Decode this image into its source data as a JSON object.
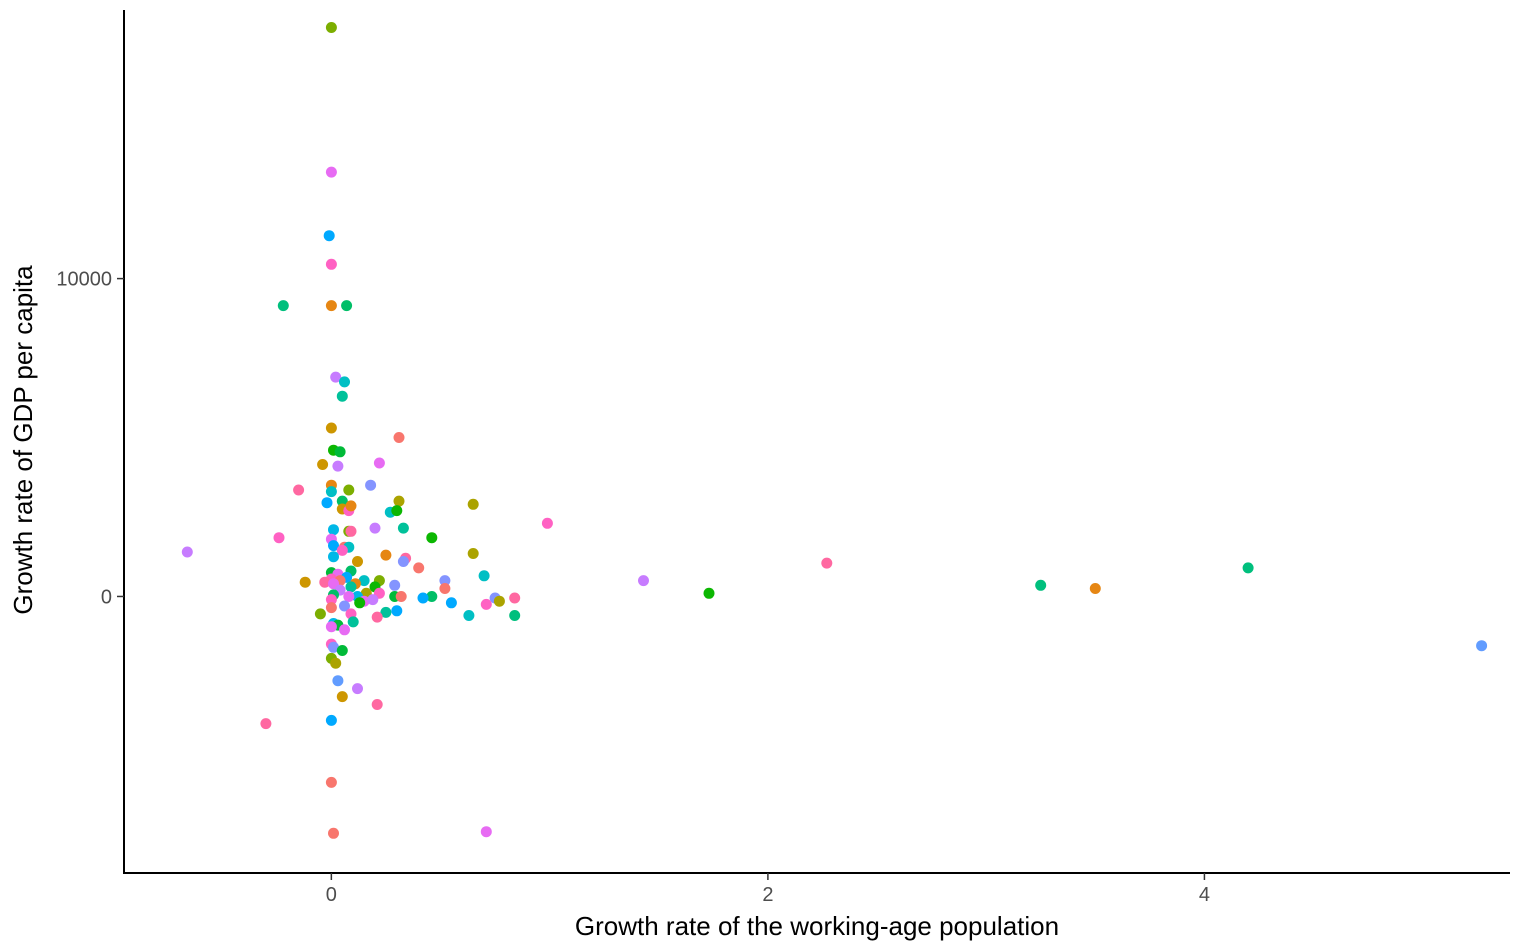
{
  "chart_data": {
    "type": "scatter",
    "title": "",
    "xlabel": "Growth rate of the working-age population",
    "ylabel": "Growth rate of GDP per capita",
    "xlim": [
      -0.95,
      5.4
    ],
    "ylim": [
      -8700,
      18450
    ],
    "x_ticks": [
      0,
      2,
      4
    ],
    "y_ticks": [
      0,
      10000
    ],
    "x_tick_labels": [
      "0",
      "2",
      "4"
    ],
    "y_tick_labels": [
      "0",
      "10000"
    ],
    "grid": false,
    "legend": "none",
    "points": [
      {
        "x": 0.0,
        "y": 17900,
        "color": "#7CAE00"
      },
      {
        "x": 0.0,
        "y": 13350,
        "color": "#E76BF3"
      },
      {
        "x": -0.01,
        "y": 11350,
        "color": "#00A9FF"
      },
      {
        "x": 0.0,
        "y": 10450,
        "color": "#FF61C3"
      },
      {
        "x": -0.22,
        "y": 9150,
        "color": "#00BF7D"
      },
      {
        "x": 0.0,
        "y": 9150,
        "color": "#E68613"
      },
      {
        "x": 0.07,
        "y": 9150,
        "color": "#00BE67"
      },
      {
        "x": 0.02,
        "y": 6900,
        "color": "#C77CFF"
      },
      {
        "x": 0.06,
        "y": 6750,
        "color": "#00BFC4"
      },
      {
        "x": 0.05,
        "y": 6300,
        "color": "#00C19A"
      },
      {
        "x": 0.0,
        "y": 5300,
        "color": "#CD9600"
      },
      {
        "x": 0.31,
        "y": 5000,
        "color": "#F8766D"
      },
      {
        "x": 0.01,
        "y": 4600,
        "color": "#0CB702"
      },
      {
        "x": 0.04,
        "y": 4550,
        "color": "#00BA38"
      },
      {
        "x": -0.04,
        "y": 4150,
        "color": "#CD9600"
      },
      {
        "x": 0.22,
        "y": 4200,
        "color": "#E76BF3"
      },
      {
        "x": 0.03,
        "y": 4100,
        "color": "#C77CFF"
      },
      {
        "x": 0.0,
        "y": 3500,
        "color": "#E68613"
      },
      {
        "x": -0.15,
        "y": 3350,
        "color": "#FF68A1"
      },
      {
        "x": 0.08,
        "y": 3350,
        "color": "#7CAE00"
      },
      {
        "x": 0.0,
        "y": 3300,
        "color": "#00BFC4"
      },
      {
        "x": 0.18,
        "y": 3500,
        "color": "#8494FF"
      },
      {
        "x": -0.02,
        "y": 2950,
        "color": "#00A9FF"
      },
      {
        "x": 0.05,
        "y": 3000,
        "color": "#00BE67"
      },
      {
        "x": 0.31,
        "y": 3000,
        "color": "#ABA300"
      },
      {
        "x": 0.65,
        "y": 2900,
        "color": "#ABA300"
      },
      {
        "x": 0.05,
        "y": 2750,
        "color": "#CD9600"
      },
      {
        "x": 0.08,
        "y": 2700,
        "color": "#FF61C3"
      },
      {
        "x": 0.09,
        "y": 2850,
        "color": "#E68613"
      },
      {
        "x": 0.27,
        "y": 2650,
        "color": "#00BFC4"
      },
      {
        "x": 0.3,
        "y": 2700,
        "color": "#0CB702"
      },
      {
        "x": 0.99,
        "y": 2300,
        "color": "#FF61C3"
      },
      {
        "x": 0.01,
        "y": 2100,
        "color": "#00B8E7"
      },
      {
        "x": 0.08,
        "y": 2050,
        "color": "#7CAE00"
      },
      {
        "x": 0.09,
        "y": 2050,
        "color": "#FF68A1"
      },
      {
        "x": 0.2,
        "y": 2150,
        "color": "#C77CFF"
      },
      {
        "x": 0.33,
        "y": 2150,
        "color": "#00C19A"
      },
      {
        "x": -0.24,
        "y": 1850,
        "color": "#FF61C3"
      },
      {
        "x": 0.46,
        "y": 1850,
        "color": "#0CB702"
      },
      {
        "x": 0.0,
        "y": 1800,
        "color": "#E76BF3"
      },
      {
        "x": 0.01,
        "y": 1600,
        "color": "#00A9FF"
      },
      {
        "x": 0.06,
        "y": 1550,
        "color": "#F8766D"
      },
      {
        "x": 0.08,
        "y": 1550,
        "color": "#00BFC4"
      },
      {
        "x": 0.05,
        "y": 1450,
        "color": "#FF61C3"
      },
      {
        "x": -0.66,
        "y": 1400,
        "color": "#C77CFF"
      },
      {
        "x": 0.65,
        "y": 1350,
        "color": "#ABA300"
      },
      {
        "x": 0.25,
        "y": 1300,
        "color": "#E68613"
      },
      {
        "x": 0.01,
        "y": 1250,
        "color": "#00B8E7"
      },
      {
        "x": 0.34,
        "y": 1200,
        "color": "#FF68A1"
      },
      {
        "x": 0.33,
        "y": 1100,
        "color": "#8494FF"
      },
      {
        "x": 0.12,
        "y": 1100,
        "color": "#CD9600"
      },
      {
        "x": 2.27,
        "y": 1050,
        "color": "#FF68A1"
      },
      {
        "x": 0.4,
        "y": 900,
        "color": "#F8766D"
      },
      {
        "x": 4.2,
        "y": 900,
        "color": "#00BF7D"
      },
      {
        "x": 0.09,
        "y": 800,
        "color": "#00BE67"
      },
      {
        "x": 0.0,
        "y": 750,
        "color": "#00BA38"
      },
      {
        "x": 0.03,
        "y": 700,
        "color": "#E76BF3"
      },
      {
        "x": 0.7,
        "y": 650,
        "color": "#00BFC4"
      },
      {
        "x": 0.07,
        "y": 600,
        "color": "#00A9FF"
      },
      {
        "x": 0.0,
        "y": 550,
        "color": "#FF61C3"
      },
      {
        "x": 0.22,
        "y": 500,
        "color": "#7CAE00"
      },
      {
        "x": 0.52,
        "y": 500,
        "color": "#8494FF"
      },
      {
        "x": 0.15,
        "y": 500,
        "color": "#00BFC4"
      },
      {
        "x": 0.04,
        "y": 500,
        "color": "#F8766D"
      },
      {
        "x": 1.43,
        "y": 500,
        "color": "#C77CFF"
      },
      {
        "x": -0.12,
        "y": 450,
        "color": "#CD9600"
      },
      {
        "x": -0.03,
        "y": 450,
        "color": "#FF68A1"
      },
      {
        "x": 0.01,
        "y": 400,
        "color": "#E76BF3"
      },
      {
        "x": 0.11,
        "y": 400,
        "color": "#E68613"
      },
      {
        "x": 0.29,
        "y": 350,
        "color": "#8494FF"
      },
      {
        "x": 3.25,
        "y": 350,
        "color": "#00BF7D"
      },
      {
        "x": 0.09,
        "y": 300,
        "color": "#00C19A"
      },
      {
        "x": 0.2,
        "y": 300,
        "color": "#0CB702"
      },
      {
        "x": 3.5,
        "y": 250,
        "color": "#E68613"
      },
      {
        "x": 0.52,
        "y": 250,
        "color": "#F8766D"
      },
      {
        "x": 0.04,
        "y": 200,
        "color": "#C77CFF"
      },
      {
        "x": 0.16,
        "y": 100,
        "color": "#ABA300"
      },
      {
        "x": 0.22,
        "y": 100,
        "color": "#FF61C3"
      },
      {
        "x": 1.73,
        "y": 100,
        "color": "#0CB702"
      },
      {
        "x": 0.01,
        "y": 50,
        "color": "#00BE67"
      },
      {
        "x": 0.12,
        "y": 0,
        "color": "#00B8E7"
      },
      {
        "x": 0.29,
        "y": 0,
        "color": "#00BA38"
      },
      {
        "x": 0.32,
        "y": 0,
        "color": "#F8766D"
      },
      {
        "x": 0.46,
        "y": 0,
        "color": "#00BE67"
      },
      {
        "x": 0.08,
        "y": 0,
        "color": "#E76BF3"
      },
      {
        "x": 0.42,
        "y": -50,
        "color": "#00A9FF"
      },
      {
        "x": 0.75,
        "y": -50,
        "color": "#8494FF"
      },
      {
        "x": 0.84,
        "y": -50,
        "color": "#FF68A1"
      },
      {
        "x": 0.0,
        "y": -100,
        "color": "#FF61C3"
      },
      {
        "x": 0.15,
        "y": -150,
        "color": "#E76BF3"
      },
      {
        "x": 0.19,
        "y": -100,
        "color": "#C77CFF"
      },
      {
        "x": 0.77,
        "y": -150,
        "color": "#ABA300"
      },
      {
        "x": 0.55,
        "y": -200,
        "color": "#00A9FF"
      },
      {
        "x": 0.71,
        "y": -250,
        "color": "#FF61C3"
      },
      {
        "x": 0.13,
        "y": -200,
        "color": "#0CB702"
      },
      {
        "x": 0.0,
        "y": -350,
        "color": "#F8766D"
      },
      {
        "x": 0.06,
        "y": -300,
        "color": "#8494FF"
      },
      {
        "x": 0.3,
        "y": -450,
        "color": "#00A9FF"
      },
      {
        "x": 0.25,
        "y": -500,
        "color": "#00C19A"
      },
      {
        "x": 0.09,
        "y": -550,
        "color": "#FF61C3"
      },
      {
        "x": -0.05,
        "y": -550,
        "color": "#7CAE00"
      },
      {
        "x": 0.63,
        "y": -600,
        "color": "#00BFC4"
      },
      {
        "x": 0.84,
        "y": -600,
        "color": "#00BF7D"
      },
      {
        "x": 0.21,
        "y": -650,
        "color": "#FF68A1"
      },
      {
        "x": 0.1,
        "y": -800,
        "color": "#00C19A"
      },
      {
        "x": 0.01,
        "y": -850,
        "color": "#00B8E7"
      },
      {
        "x": 0.03,
        "y": -900,
        "color": "#00BA38"
      },
      {
        "x": 0.0,
        "y": -950,
        "color": "#E76BF3"
      },
      {
        "x": 0.06,
        "y": -1050,
        "color": "#E76BF3"
      },
      {
        "x": 0.0,
        "y": -1500,
        "color": "#FF61C3"
      },
      {
        "x": 0.01,
        "y": -1600,
        "color": "#8494FF"
      },
      {
        "x": 0.05,
        "y": -1700,
        "color": "#00BA38"
      },
      {
        "x": 0.0,
        "y": -1950,
        "color": "#7CAE00"
      },
      {
        "x": 0.02,
        "y": -2100,
        "color": "#ABA300"
      },
      {
        "x": 5.27,
        "y": -1550,
        "color": "#619CFF"
      },
      {
        "x": 0.03,
        "y": -2650,
        "color": "#619CFF"
      },
      {
        "x": 0.12,
        "y": -2900,
        "color": "#C77CFF"
      },
      {
        "x": 0.05,
        "y": -3150,
        "color": "#CD9600"
      },
      {
        "x": 0.21,
        "y": -3400,
        "color": "#FF68A1"
      },
      {
        "x": 0.0,
        "y": -3900,
        "color": "#00A9FF"
      },
      {
        "x": -0.3,
        "y": -4000,
        "color": "#FF68A1"
      },
      {
        "x": 0.0,
        "y": -5850,
        "color": "#F8766D"
      },
      {
        "x": 0.71,
        "y": -7400,
        "color": "#E76BF3"
      },
      {
        "x": 0.01,
        "y": -7450,
        "color": "#F8766D"
      }
    ]
  }
}
